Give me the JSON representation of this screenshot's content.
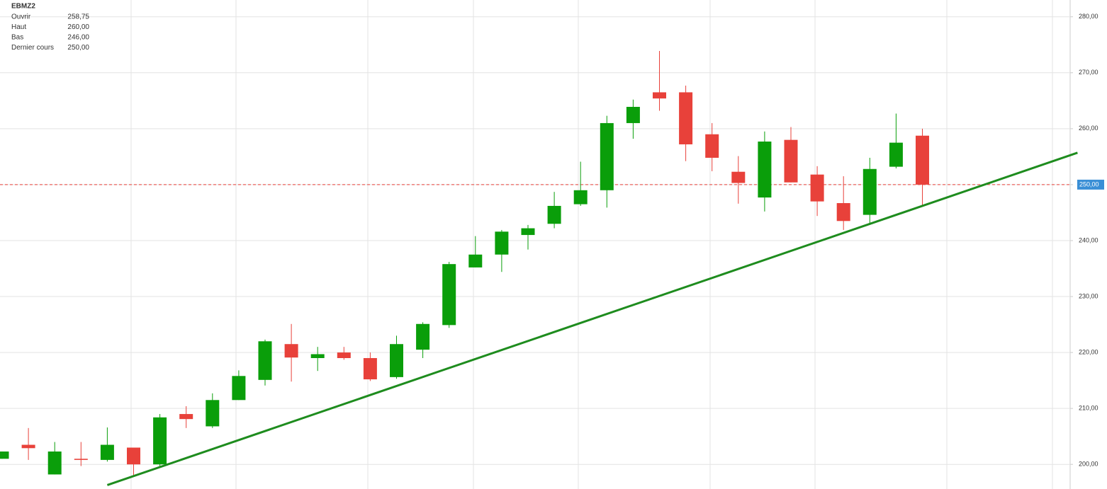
{
  "chart_data": {
    "type": "candlestick",
    "info": {
      "symbol": "EBMZ2",
      "rows": [
        [
          "Ouvrir",
          "258,75"
        ],
        [
          "Haut",
          "260,00"
        ],
        [
          "Bas",
          "246,00"
        ],
        [
          "Dernier cours",
          "250,00"
        ]
      ]
    },
    "categories": [
      null,
      null,
      null,
      null,
      null,
      null,
      null,
      null,
      null,
      null,
      null,
      null,
      null,
      null,
      null,
      null,
      null,
      null,
      null,
      null,
      null,
      null,
      null,
      null,
      null,
      null,
      null,
      null,
      null,
      null,
      null,
      null,
      null,
      null,
      null,
      null
    ],
    "open": [
      201.0,
      203.5,
      198.2,
      201.0,
      200.8,
      203.0,
      200.0,
      209.0,
      206.8,
      211.5,
      215.1,
      221.5,
      219.0,
      220.0,
      219.0,
      215.6,
      220.5,
      224.9,
      235.2,
      237.5,
      241.0,
      243.0,
      246.5,
      249.0,
      261.0,
      266.5,
      266.5,
      259.0,
      252.3,
      247.7,
      258.0,
      251.8,
      246.7,
      244.6,
      253.2,
      258.75
    ],
    "high": [
      202.3,
      206.5,
      204.0,
      204.0,
      206.6,
      203.0,
      209.0,
      210.4,
      212.7,
      216.8,
      222.3,
      225.1,
      221.0,
      221.0,
      220.0,
      223.0,
      225.4,
      236.2,
      240.8,
      241.9,
      242.8,
      248.7,
      254.1,
      262.3,
      265.2,
      273.9,
      267.7,
      261.0,
      255.1,
      259.5,
      260.3,
      253.3,
      251.5,
      254.8,
      262.7,
      260.0
    ],
    "low": [
      201.0,
      200.8,
      198.2,
      199.7,
      200.5,
      197.8,
      199.5,
      206.5,
      206.5,
      211.5,
      214.1,
      214.8,
      216.7,
      218.7,
      214.9,
      215.3,
      219.0,
      224.4,
      235.2,
      234.4,
      238.4,
      242.2,
      246.2,
      245.9,
      258.2,
      263.2,
      254.2,
      252.4,
      246.6,
      245.2,
      250.4,
      244.4,
      241.9,
      242.8,
      252.9,
      246.0
    ],
    "close": [
      202.3,
      202.9,
      202.3,
      200.8,
      203.5,
      200.0,
      208.4,
      208.1,
      211.5,
      215.8,
      222.0,
      219.1,
      219.7,
      219.0,
      215.2,
      221.5,
      225.1,
      235.8,
      237.5,
      241.6,
      242.2,
      246.2,
      249.0,
      261.0,
      263.9,
      265.4,
      257.2,
      254.8,
      250.3,
      257.7,
      250.4,
      247.0,
      243.5,
      252.8,
      257.5,
      250.0
    ],
    "up_color": "#0a9e0a",
    "down_color": "#e8413a",
    "ylim": [
      195.6,
      283.0
    ],
    "yticks": [
      {
        "value": 200,
        "label": "200,00"
      },
      {
        "value": 210,
        "label": "210,00"
      },
      {
        "value": 220,
        "label": "220,00"
      },
      {
        "value": 230,
        "label": "230,00"
      },
      {
        "value": 240,
        "label": "240,00"
      },
      {
        "value": 250,
        "label": "250,00"
      },
      {
        "value": 260,
        "label": "260,00"
      },
      {
        "value": 270,
        "label": "270,00"
      },
      {
        "value": 280,
        "label": "280,00"
      }
    ],
    "last": {
      "value": 250,
      "label": "250,00",
      "color": "#e8413a"
    },
    "trendline": {
      "x": [
        4,
        40.9
      ],
      "y": [
        196.3,
        255.7
      ],
      "color": "#1e8c1e"
    },
    "grid": true
  }
}
